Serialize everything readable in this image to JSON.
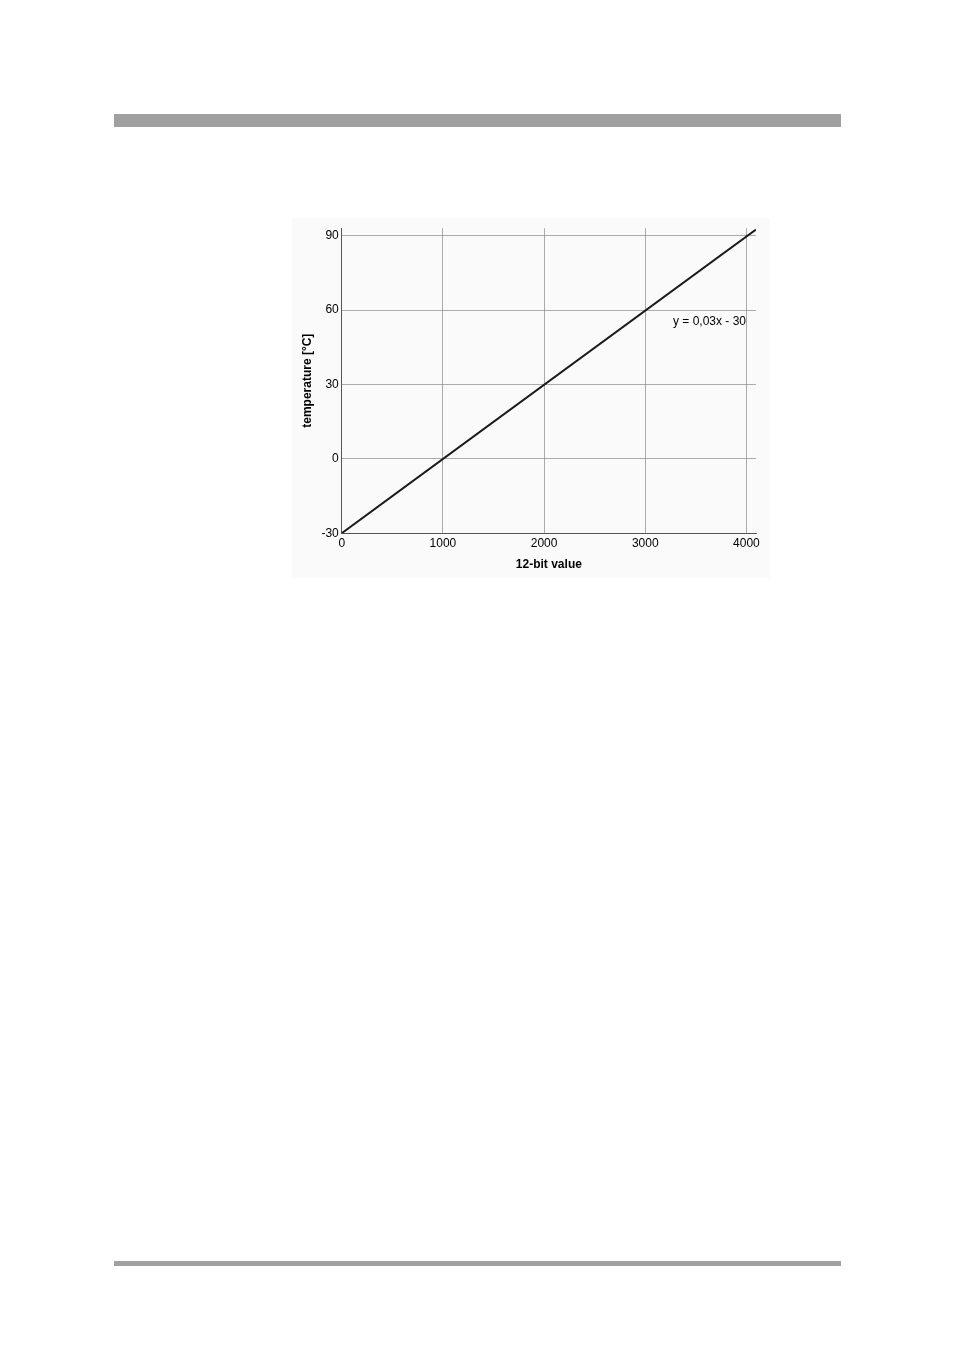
{
  "chart_data": {
    "type": "line",
    "xlabel": "12-bit value",
    "ylabel": "temperature [°C]",
    "x": [
      0,
      4095
    ],
    "series": [
      {
        "color": "#1a1a1a",
        "values": [
          -30,
          92.5
        ]
      }
    ],
    "xlim": [
      0,
      4095
    ],
    "xticks": [
      0,
      1000,
      2000,
      3000,
      4000
    ],
    "ylim": [
      -30,
      93
    ],
    "yticks": [
      -30,
      0,
      30,
      60,
      90
    ],
    "grid": true,
    "marker": "none",
    "line_style": "solid",
    "annotations": [
      "y = 0,03x - 30"
    ]
  }
}
